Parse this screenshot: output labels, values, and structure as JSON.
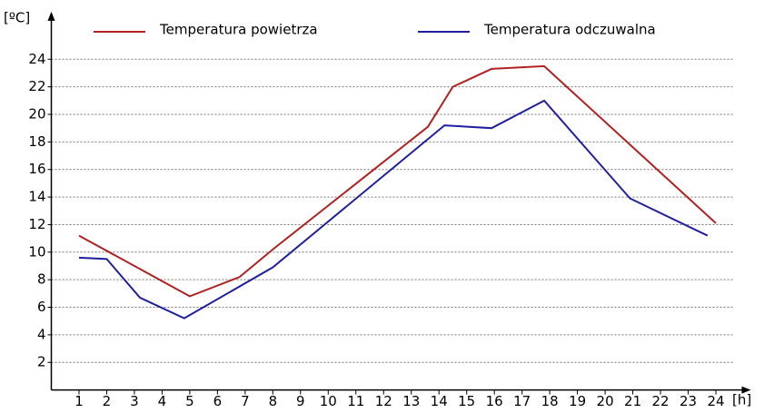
{
  "chart_data": {
    "type": "line",
    "y_label": "[ºC]",
    "x_label": "[h]",
    "xlim": [
      0,
      25
    ],
    "ylim": [
      0,
      26
    ],
    "xticks": [
      1,
      2,
      3,
      4,
      5,
      6,
      7,
      8,
      9,
      10,
      11,
      12,
      13,
      14,
      15,
      16,
      17,
      18,
      19,
      20,
      21,
      22,
      23,
      24
    ],
    "yticks": [
      2,
      4,
      6,
      8,
      10,
      12,
      14,
      16,
      18,
      20,
      22,
      24
    ],
    "grid": true,
    "legend": "top",
    "series": [
      {
        "name": "Temperatura powietrza",
        "color": "#b22222",
        "x": [
          1,
          5,
          6.8,
          8,
          13.6,
          14.5,
          15.9,
          17.8,
          24
        ],
        "values": [
          11.2,
          6.8,
          8.2,
          10.2,
          19.1,
          22,
          23.3,
          23.5,
          12.1
        ]
      },
      {
        "name": "Temperatura odczuwalna",
        "color": "#1f1fa0",
        "x": [
          1,
          2,
          3.2,
          4.8,
          8,
          14.2,
          15.9,
          17.8,
          20.9,
          23.7
        ],
        "values": [
          9.6,
          9.5,
          6.7,
          5.2,
          8.9,
          19.2,
          19,
          21,
          13.9,
          11.2
        ]
      }
    ]
  }
}
